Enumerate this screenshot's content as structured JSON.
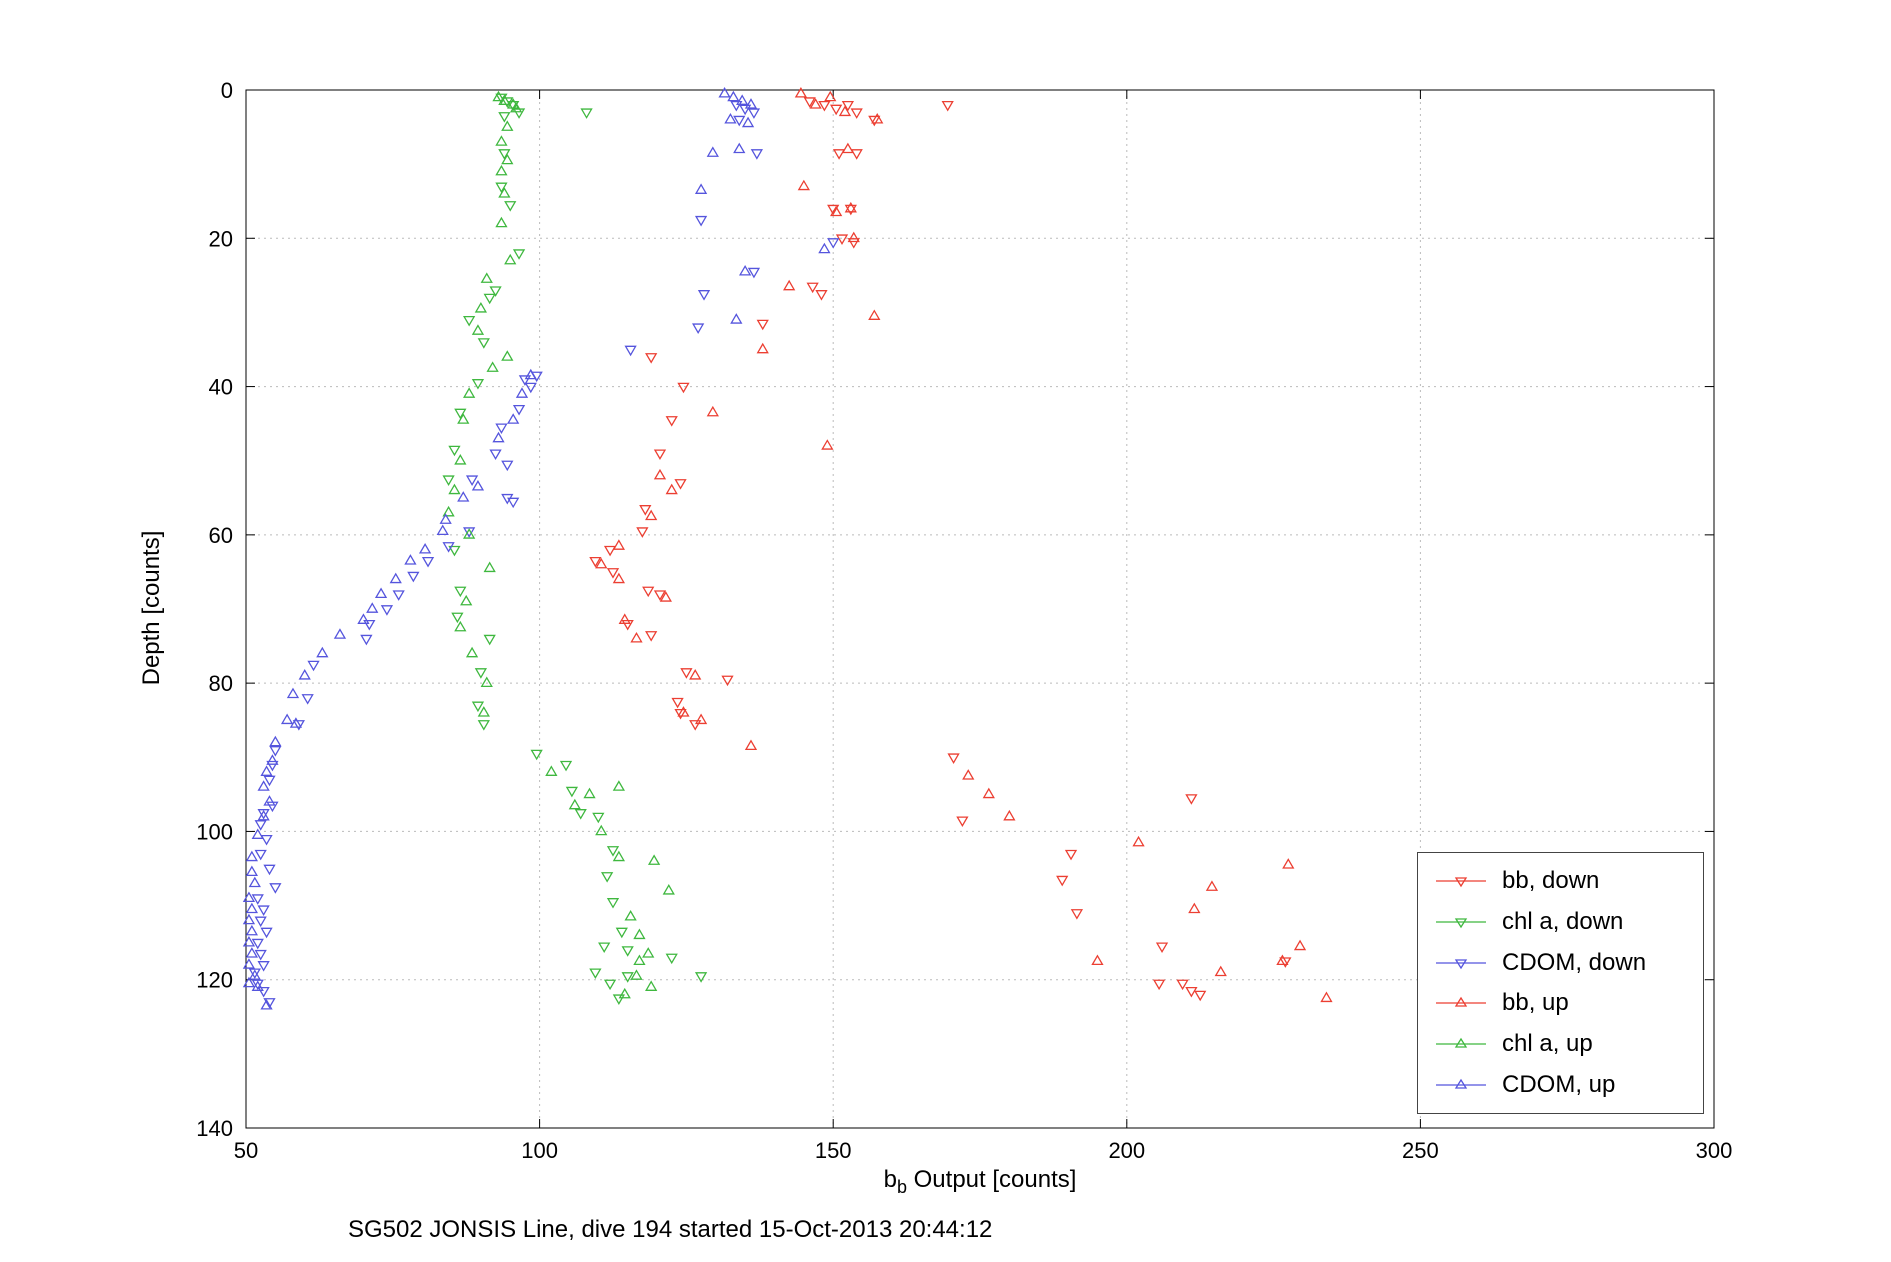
{
  "chart_data": {
    "type": "scatter",
    "title": "SG502 JONSIS Line, dive 194 started 15-Oct-2013 20:44:12",
    "xlabel": {
      "pre": "b",
      "sub": "b",
      "post": " Output [counts]"
    },
    "ylabel": "Depth [counts]",
    "xlim": [
      50,
      300
    ],
    "ylim": [
      0,
      140
    ],
    "y_axis_inverted": true,
    "xticks": [
      50,
      100,
      150,
      200,
      250,
      300
    ],
    "yticks": [
      0,
      20,
      40,
      60,
      80,
      100,
      120,
      140
    ],
    "grid": true,
    "grid_color": "#bbbbbb",
    "axes_color": "#000000",
    "legend_position": "lower-right-inside",
    "series": [
      {
        "name": "bb, down",
        "color": "#ec3f32",
        "marker": "triangle-down",
        "points": [
          [
            146,
            1.5
          ],
          [
            148.5,
            2
          ],
          [
            150.5,
            2.5
          ],
          [
            152.5,
            2
          ],
          [
            154,
            3
          ],
          [
            157,
            4
          ],
          [
            169.5,
            2
          ],
          [
            151,
            8.5
          ],
          [
            154,
            8.5
          ],
          [
            150,
            16
          ],
          [
            153,
            16
          ],
          [
            151.5,
            20
          ],
          [
            153.5,
            20.5
          ],
          [
            146.5,
            26.5
          ],
          [
            148,
            27.5
          ],
          [
            138,
            31.5
          ],
          [
            119,
            36
          ],
          [
            124.5,
            40
          ],
          [
            122.5,
            44.5
          ],
          [
            120.5,
            49
          ],
          [
            124,
            53
          ],
          [
            118,
            56.5
          ],
          [
            117.5,
            59.5
          ],
          [
            112,
            62
          ],
          [
            109.5,
            63.5
          ],
          [
            112.5,
            65
          ],
          [
            118.5,
            67.5
          ],
          [
            120.5,
            68
          ],
          [
            115,
            72
          ],
          [
            119,
            73.5
          ],
          [
            125,
            78.5
          ],
          [
            132,
            79.5
          ],
          [
            123.5,
            82.5
          ],
          [
            124,
            84
          ],
          [
            126.5,
            85.5
          ],
          [
            170.5,
            90
          ],
          [
            172,
            98.5
          ],
          [
            211,
            95.5
          ],
          [
            190.5,
            103
          ],
          [
            189,
            106.5
          ],
          [
            191.5,
            111
          ],
          [
            206,
            115.5
          ],
          [
            227,
            117.5
          ],
          [
            205.5,
            120.5
          ],
          [
            209.5,
            120.5
          ],
          [
            211,
            121.5
          ],
          [
            212.5,
            122
          ]
        ]
      },
      {
        "name": "chl a, down",
        "color": "#3fb83f",
        "marker": "triangle-down",
        "points": [
          [
            93.5,
            1
          ],
          [
            94.5,
            1.5
          ],
          [
            95.5,
            2
          ],
          [
            96.5,
            3
          ],
          [
            94,
            3.5
          ],
          [
            108,
            3
          ],
          [
            94,
            8.5
          ],
          [
            93.5,
            13
          ],
          [
            95,
            15.5
          ],
          [
            96.5,
            22
          ],
          [
            92.5,
            27
          ],
          [
            91.5,
            28
          ],
          [
            88,
            31
          ],
          [
            90.5,
            34
          ],
          [
            89.5,
            39.5
          ],
          [
            86.5,
            43.5
          ],
          [
            85.5,
            48.5
          ],
          [
            84.5,
            52.5
          ],
          [
            85.5,
            62
          ],
          [
            86.5,
            67.5
          ],
          [
            86,
            71
          ],
          [
            91.5,
            74
          ],
          [
            90,
            78.5
          ],
          [
            89.5,
            83
          ],
          [
            90.5,
            85.5
          ],
          [
            99.5,
            89.5
          ],
          [
            104.5,
            91
          ],
          [
            105.5,
            94.5
          ],
          [
            107,
            97.5
          ],
          [
            110,
            98
          ],
          [
            112.5,
            102.5
          ],
          [
            111.5,
            106
          ],
          [
            112.5,
            109.5
          ],
          [
            114,
            113.5
          ],
          [
            111,
            115.5
          ],
          [
            115,
            116
          ],
          [
            122.5,
            117
          ],
          [
            109.5,
            119
          ],
          [
            115,
            119.5
          ],
          [
            112,
            120.5
          ],
          [
            127.5,
            119.5
          ],
          [
            113.5,
            122.5
          ]
        ]
      },
      {
        "name": "CDOM, down",
        "color": "#5555dd",
        "marker": "triangle-down",
        "points": [
          [
            133.5,
            2
          ],
          [
            135,
            2.5
          ],
          [
            136.5,
            3
          ],
          [
            134,
            4
          ],
          [
            137,
            8.5
          ],
          [
            127.5,
            17.5
          ],
          [
            150,
            20.5
          ],
          [
            136.5,
            24.5
          ],
          [
            128,
            27.5
          ],
          [
            127,
            32
          ],
          [
            115.5,
            35
          ],
          [
            99.5,
            38.5
          ],
          [
            97.5,
            39
          ],
          [
            98.5,
            40
          ],
          [
            96.5,
            43
          ],
          [
            93.5,
            45.5
          ],
          [
            92.5,
            49
          ],
          [
            94.5,
            50.5
          ],
          [
            88.5,
            52.5
          ],
          [
            94.5,
            55
          ],
          [
            95.5,
            55.5
          ],
          [
            88,
            59.5
          ],
          [
            84.5,
            61.5
          ],
          [
            81,
            63.5
          ],
          [
            78.5,
            65.5
          ],
          [
            76,
            68
          ],
          [
            74,
            70
          ],
          [
            71,
            72
          ],
          [
            70.5,
            74
          ],
          [
            61.5,
            77.5
          ],
          [
            60.5,
            82
          ],
          [
            59,
            85.5
          ],
          [
            55,
            89
          ],
          [
            54.5,
            91
          ],
          [
            54,
            93
          ],
          [
            54.5,
            96.5
          ],
          [
            53,
            97.5
          ],
          [
            52.5,
            99
          ],
          [
            53.5,
            101
          ],
          [
            52.5,
            103
          ],
          [
            54,
            105
          ],
          [
            55,
            107.5
          ],
          [
            52,
            109
          ],
          [
            53,
            110.5
          ],
          [
            52.5,
            112
          ],
          [
            53.5,
            113.5
          ],
          [
            52,
            115
          ],
          [
            52.5,
            116.5
          ],
          [
            53,
            118
          ],
          [
            51.5,
            119
          ],
          [
            52,
            120.5
          ],
          [
            53,
            121.5
          ],
          [
            54,
            123
          ]
        ]
      },
      {
        "name": "bb, up",
        "color": "#ec3f32",
        "marker": "triangle-up",
        "points": [
          [
            144.5,
            0.5
          ],
          [
            147,
            2
          ],
          [
            149.5,
            1
          ],
          [
            152,
            3
          ],
          [
            157.5,
            4
          ],
          [
            152.5,
            8
          ],
          [
            145,
            13
          ],
          [
            150.5,
            16.5
          ],
          [
            153,
            16
          ],
          [
            153.5,
            20
          ],
          [
            142.5,
            26.5
          ],
          [
            157,
            30.5
          ],
          [
            138,
            35
          ],
          [
            129.5,
            43.5
          ],
          [
            149,
            48
          ],
          [
            120.5,
            52
          ],
          [
            122.5,
            54
          ],
          [
            119,
            57.5
          ],
          [
            113.5,
            61.5
          ],
          [
            110.5,
            64
          ],
          [
            113.5,
            66
          ],
          [
            121.5,
            68.5
          ],
          [
            114.5,
            71.5
          ],
          [
            116.5,
            74
          ],
          [
            126.5,
            79
          ],
          [
            124.5,
            84
          ],
          [
            127.5,
            85
          ],
          [
            136,
            88.5
          ],
          [
            173,
            92.5
          ],
          [
            176.5,
            95
          ],
          [
            180,
            98
          ],
          [
            202,
            101.5
          ],
          [
            227.5,
            104.5
          ],
          [
            214.5,
            107.5
          ],
          [
            211.5,
            110.5
          ],
          [
            229.5,
            115.5
          ],
          [
            195,
            117.5
          ],
          [
            226.5,
            117.5
          ],
          [
            216,
            119
          ],
          [
            234,
            122.5
          ]
        ]
      },
      {
        "name": "chl a, up",
        "color": "#3fb83f",
        "marker": "triangle-up",
        "points": [
          [
            93,
            1
          ],
          [
            94,
            1.5
          ],
          [
            95.5,
            2
          ],
          [
            96,
            2.5
          ],
          [
            94.5,
            5
          ],
          [
            93.5,
            7
          ],
          [
            94.5,
            9.5
          ],
          [
            93.5,
            11
          ],
          [
            94,
            14
          ],
          [
            93.5,
            18
          ],
          [
            95,
            23
          ],
          [
            91,
            25.5
          ],
          [
            90,
            29.5
          ],
          [
            89.5,
            32.5
          ],
          [
            94.5,
            36
          ],
          [
            92,
            37.5
          ],
          [
            88,
            41
          ],
          [
            87,
            44.5
          ],
          [
            86.5,
            50
          ],
          [
            85.5,
            54
          ],
          [
            84.5,
            57
          ],
          [
            88,
            60
          ],
          [
            91.5,
            64.5
          ],
          [
            87.5,
            69
          ],
          [
            86.5,
            72.5
          ],
          [
            88.5,
            76
          ],
          [
            91,
            80
          ],
          [
            90.5,
            84
          ],
          [
            102,
            92
          ],
          [
            108.5,
            95
          ],
          [
            113.5,
            94
          ],
          [
            106,
            96.5
          ],
          [
            110.5,
            100
          ],
          [
            113.5,
            103.5
          ],
          [
            119.5,
            104
          ],
          [
            122,
            108
          ],
          [
            115.5,
            111.5
          ],
          [
            117,
            114
          ],
          [
            118.5,
            116.5
          ],
          [
            117,
            117.5
          ],
          [
            116.5,
            119.5
          ],
          [
            119,
            121
          ],
          [
            114.5,
            122
          ]
        ]
      },
      {
        "name": "CDOM, up",
        "color": "#5555dd",
        "marker": "triangle-up",
        "points": [
          [
            131.5,
            0.5
          ],
          [
            133,
            1
          ],
          [
            134.5,
            1.5
          ],
          [
            136,
            2
          ],
          [
            132.5,
            4
          ],
          [
            135.5,
            4.5
          ],
          [
            129.5,
            8.5
          ],
          [
            134,
            8
          ],
          [
            127.5,
            13.5
          ],
          [
            148.5,
            21.5
          ],
          [
            135,
            24.5
          ],
          [
            133.5,
            31
          ],
          [
            98.5,
            38.5
          ],
          [
            97,
            41
          ],
          [
            95.5,
            44.5
          ],
          [
            93,
            47
          ],
          [
            89.5,
            53.5
          ],
          [
            87,
            55
          ],
          [
            84,
            58
          ],
          [
            83.5,
            59.5
          ],
          [
            80.5,
            62
          ],
          [
            78,
            63.5
          ],
          [
            75.5,
            66
          ],
          [
            73,
            68
          ],
          [
            71.5,
            70
          ],
          [
            70,
            71.5
          ],
          [
            66,
            73.5
          ],
          [
            63,
            76
          ],
          [
            60,
            79
          ],
          [
            58,
            81.5
          ],
          [
            57,
            85
          ],
          [
            58.5,
            85.5
          ],
          [
            55,
            88
          ],
          [
            54.5,
            90.5
          ],
          [
            53.5,
            92
          ],
          [
            53,
            94
          ],
          [
            54,
            96
          ],
          [
            53,
            98
          ],
          [
            52,
            100.5
          ],
          [
            51,
            103.5
          ],
          [
            51,
            105.5
          ],
          [
            51.5,
            107
          ],
          [
            50.5,
            109
          ],
          [
            51,
            110.5
          ],
          [
            50.5,
            112
          ],
          [
            51,
            113.5
          ],
          [
            50.5,
            115
          ],
          [
            51,
            116.5
          ],
          [
            50.5,
            118
          ],
          [
            51.5,
            119.5
          ],
          [
            50.5,
            120.5
          ],
          [
            52,
            121
          ],
          [
            53.5,
            123.5
          ]
        ]
      }
    ]
  }
}
